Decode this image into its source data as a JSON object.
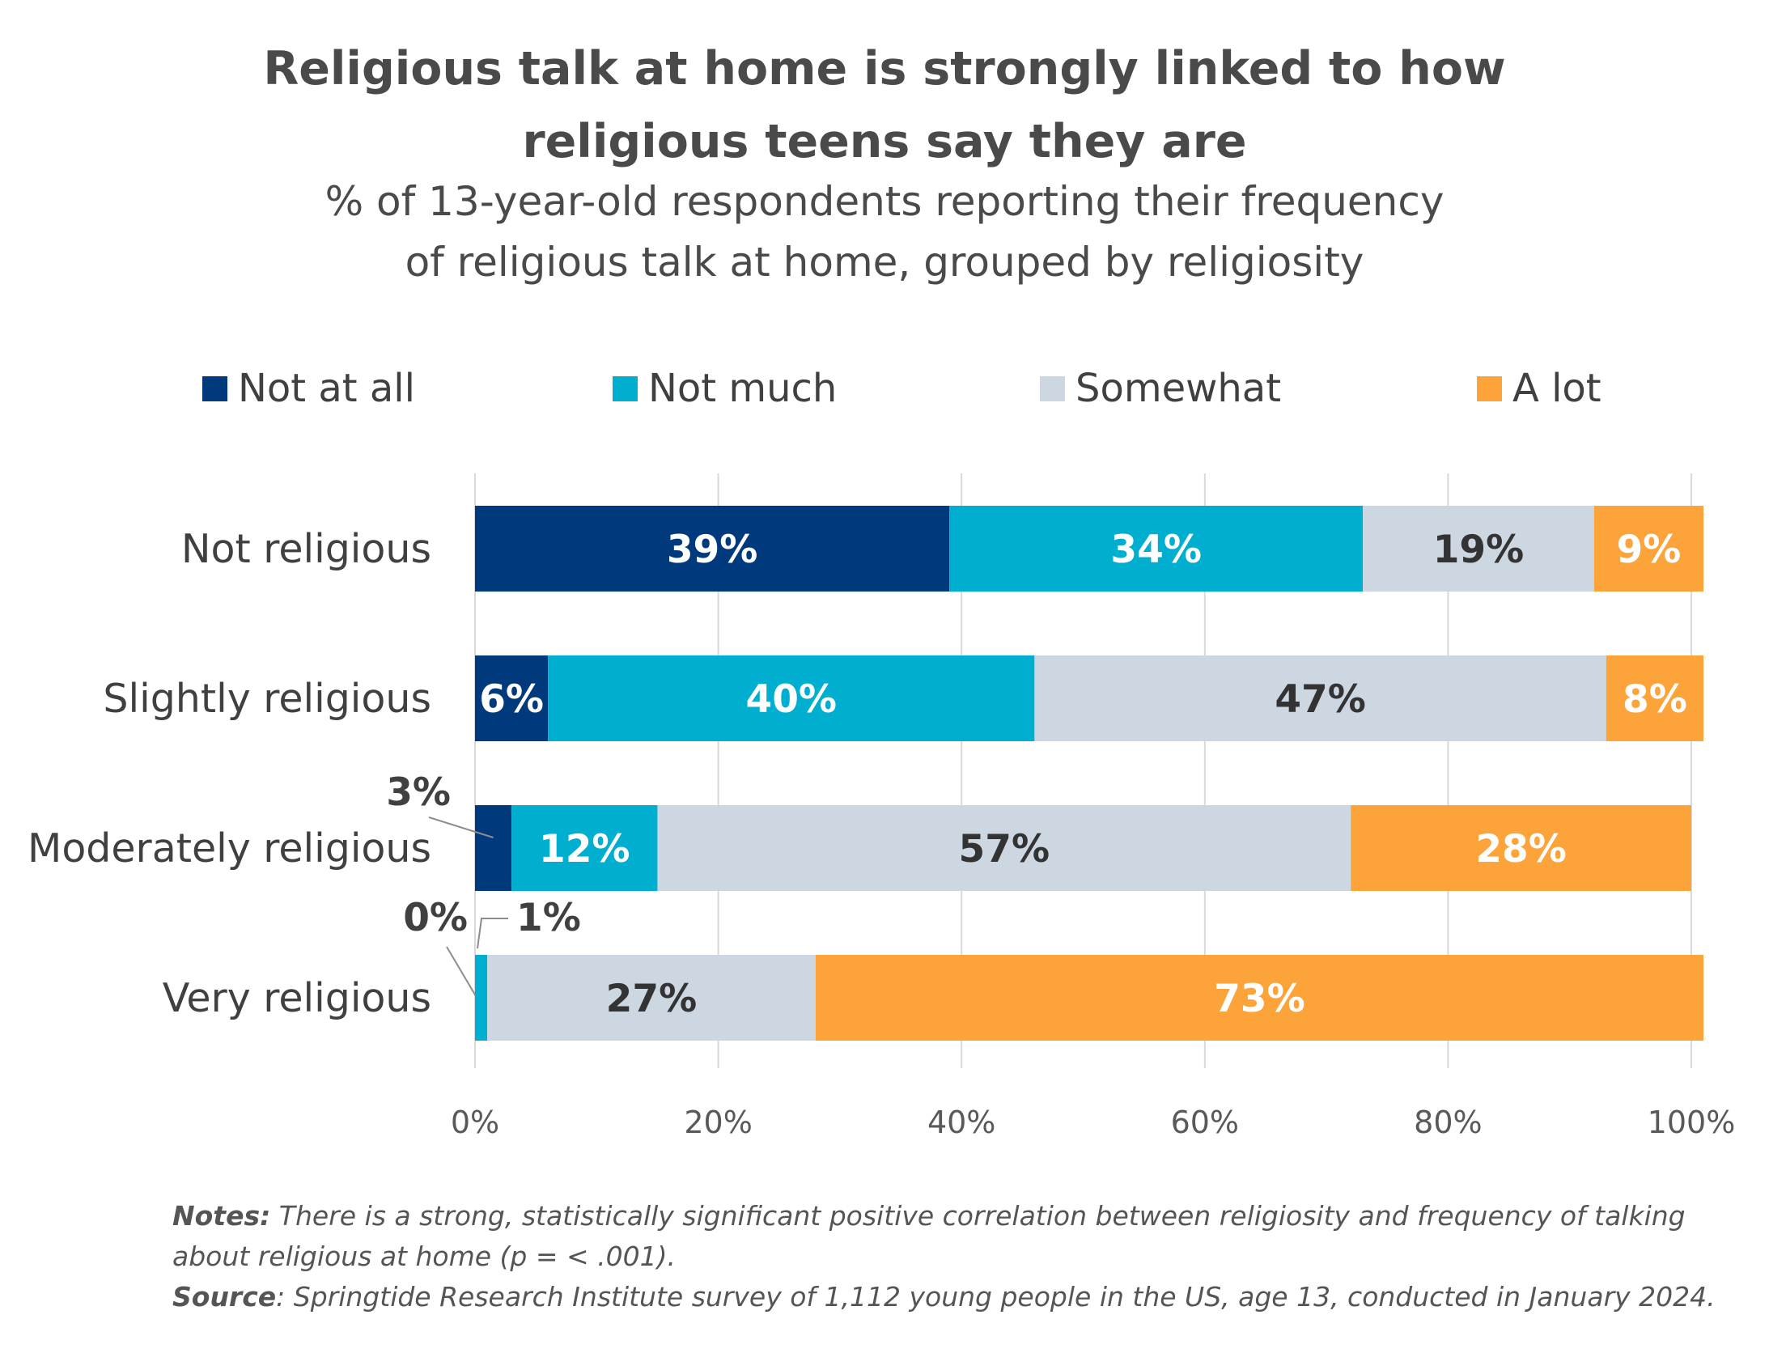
{
  "title_lines": [
    "Religious talk at home is strongly linked to how",
    "religious teens say they are"
  ],
  "subtitle_lines": [
    "% of 13-year-old respondents reporting their frequency",
    "of religious talk at home, grouped by religiosity"
  ],
  "notes": {
    "notes_label": "Notes:",
    "notes_line1": " There is a strong, statistically significant positive correlation between religiosity and frequency of talking",
    "notes_line2": "about religious at home (p = < .001).",
    "source_label": "Source",
    "source_text": ": Springtide Research Institute survey of 1,112 young people in the US, age 13, conducted in January 2024."
  },
  "chart_data": {
    "type": "bar",
    "orientation": "horizontal",
    "stacked": true,
    "categories": [
      "Not religious",
      "Slightly religious",
      "Moderately religious",
      "Very religious"
    ],
    "series": [
      {
        "name": "Not at all",
        "color": "#003a7d",
        "label_color": "#ffffff",
        "values": [
          39,
          6,
          3,
          0
        ]
      },
      {
        "name": "Not much",
        "color": "#00aed0",
        "label_color": "#ffffff",
        "values": [
          34,
          40,
          12,
          1
        ]
      },
      {
        "name": "Somewhat",
        "color": "#ccd7e2",
        "label_color": "#333333",
        "values": [
          19,
          47,
          57,
          27
        ]
      },
      {
        "name": "A lot",
        "color": "#fca33a",
        "label_color": "#ffffff",
        "values": [
          9,
          8,
          28,
          73
        ]
      }
    ],
    "value_labels": [
      [
        "39%",
        "34%",
        "19%",
        "9%"
      ],
      [
        "6%",
        "40%",
        "47%",
        "8%"
      ],
      [
        "3%",
        "12%",
        "57%",
        "28%"
      ],
      [
        "0%",
        "1%",
        "27%",
        "73%"
      ]
    ],
    "xlim": [
      0,
      100
    ],
    "x_ticks": [
      "0%",
      "20%",
      "40%",
      "60%",
      "80%",
      "100%"
    ],
    "grid": true,
    "legend_position": "top"
  }
}
